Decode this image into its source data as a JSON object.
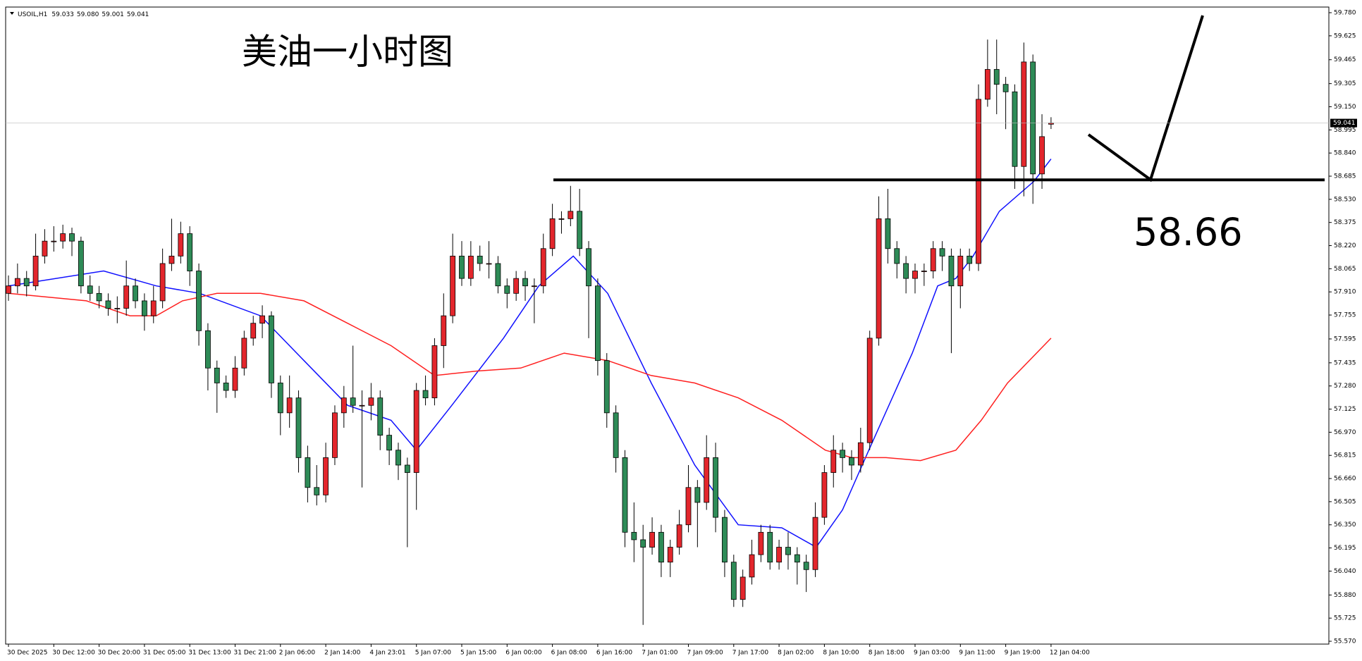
{
  "chart_data": {
    "type": "candlestick",
    "symbol": "USOIL,H1",
    "header_values": [
      "59.033",
      "59.080",
      "59.001",
      "59.041"
    ],
    "title": "美油一小时图",
    "level": 58.66,
    "last_price": 59.041,
    "up_color": "#e3262c",
    "down_color": "#2e8b57",
    "grid": false,
    "ylim": [
      55.57,
      59.78
    ],
    "yticks": [
      {
        "value": 59.78,
        "label": "59.780"
      },
      59.625,
      59.465,
      59.305,
      {
        "value": 59.15,
        "label": "59.150"
      },
      58.995,
      {
        "value": 58.84,
        "label": "58.840"
      },
      58.685,
      {
        "value": 58.53,
        "label": "58.530"
      },
      58.375,
      {
        "value": 58.22,
        "label": "58.220"
      },
      58.065,
      {
        "value": 57.91,
        "label": "57.910"
      },
      57.755,
      57.595,
      57.435,
      {
        "value": 57.28,
        "label": "57.280"
      },
      57.125,
      {
        "value": 56.97,
        "label": "56.970"
      },
      56.815,
      {
        "value": 56.66,
        "label": "56.660"
      },
      56.505,
      {
        "value": 56.35,
        "label": "56.350"
      },
      56.195,
      {
        "value": 56.04,
        "label": "56.040"
      },
      {
        "value": 55.88,
        "label": "55.880"
      },
      55.725,
      {
        "value": 55.57,
        "label": "55.570"
      }
    ],
    "categories": [
      "30 Dec 2025",
      null,
      null,
      null,
      null,
      "30 Dec 12:00",
      null,
      null,
      null,
      null,
      "30 Dec 20:00",
      null,
      null,
      null,
      null,
      "31 Dec 05:00",
      null,
      null,
      null,
      null,
      "31 Dec 13:00",
      null,
      null,
      null,
      null,
      "31 Dec 21:00",
      null,
      null,
      null,
      null,
      "2 Jan 06:00",
      null,
      null,
      null,
      null,
      "2 Jan 14:00",
      null,
      null,
      null,
      null,
      "4 Jan 23:01",
      null,
      null,
      null,
      null,
      "5 Jan 07:00",
      null,
      null,
      null,
      null,
      "5 Jan 15:00",
      null,
      null,
      null,
      null,
      "6 Jan 00:00",
      null,
      null,
      null,
      null,
      "6 Jan 08:00",
      null,
      null,
      null,
      null,
      "6 Jan 16:00",
      null,
      null,
      null,
      null,
      "7 Jan 01:00",
      null,
      null,
      null,
      null,
      "7 Jan 09:00",
      null,
      null,
      null,
      null,
      "7 Jan 17:00",
      null,
      null,
      null,
      null,
      "8 Jan 02:00",
      null,
      null,
      null,
      null,
      "8 Jan 10:00",
      null,
      null,
      null,
      null,
      "8 Jan 18:00",
      null,
      null,
      null,
      null,
      "9 Jan 03:00",
      null,
      null,
      null,
      null,
      "9 Jan 11:00",
      null,
      null,
      null,
      null,
      "9 Jan 19:00",
      null,
      null,
      null,
      null,
      "12 Jan 04:00"
    ],
    "ohlc": [
      [
        57.9,
        58.02,
        57.85,
        57.95
      ],
      [
        57.95,
        58.1,
        57.9,
        58.0
      ],
      [
        58.0,
        58.05,
        57.88,
        57.95
      ],
      [
        57.95,
        58.3,
        57.92,
        58.15
      ],
      [
        58.15,
        58.33,
        58.1,
        58.25
      ],
      [
        58.25,
        58.35,
        58.18,
        58.25
      ],
      [
        58.25,
        58.36,
        58.2,
        58.3
      ],
      [
        58.3,
        58.34,
        58.15,
        58.25
      ],
      [
        58.25,
        58.28,
        57.9,
        57.95
      ],
      [
        57.95,
        58.02,
        57.85,
        57.9
      ],
      [
        57.9,
        57.95,
        57.8,
        57.85
      ],
      [
        57.85,
        57.9,
        57.75,
        57.8
      ],
      [
        57.8,
        57.88,
        57.7,
        57.8
      ],
      [
        57.8,
        58.12,
        57.75,
        57.95
      ],
      [
        57.95,
        58.0,
        57.8,
        57.85
      ],
      [
        57.85,
        57.9,
        57.65,
        57.75
      ],
      [
        57.75,
        57.95,
        57.7,
        57.85
      ],
      [
        57.85,
        58.2,
        57.8,
        58.1
      ],
      [
        58.1,
        58.4,
        58.05,
        58.15
      ],
      [
        58.15,
        58.38,
        58.1,
        58.3
      ],
      [
        58.3,
        58.35,
        57.95,
        58.05
      ],
      [
        58.05,
        58.1,
        57.55,
        57.65
      ],
      [
        57.65,
        57.7,
        57.25,
        57.4
      ],
      [
        57.4,
        57.45,
        57.1,
        57.3
      ],
      [
        57.3,
        57.35,
        57.2,
        57.25
      ],
      [
        57.25,
        57.48,
        57.2,
        57.4
      ],
      [
        57.4,
        57.65,
        57.35,
        57.6
      ],
      [
        57.6,
        57.75,
        57.55,
        57.7
      ],
      [
        57.7,
        57.82,
        57.6,
        57.75
      ],
      [
        57.75,
        57.78,
        57.2,
        57.3
      ],
      [
        57.3,
        57.35,
        56.95,
        57.1
      ],
      [
        57.1,
        57.35,
        57.0,
        57.2
      ],
      [
        57.2,
        57.25,
        56.7,
        56.8
      ],
      [
        56.8,
        56.88,
        56.5,
        56.6
      ],
      [
        56.6,
        56.75,
        56.48,
        56.55
      ],
      [
        56.55,
        56.9,
        56.5,
        56.8
      ],
      [
        56.8,
        57.15,
        56.75,
        57.1
      ],
      [
        57.1,
        57.28,
        57.0,
        57.2
      ],
      [
        57.2,
        57.55,
        57.1,
        57.15
      ],
      [
        57.15,
        57.25,
        56.6,
        57.15
      ],
      [
        57.15,
        57.3,
        57.05,
        57.2
      ],
      [
        57.2,
        57.25,
        56.85,
        56.95
      ],
      [
        56.95,
        57.0,
        56.75,
        56.85
      ],
      [
        56.85,
        56.9,
        56.65,
        56.75
      ],
      [
        56.75,
        56.8,
        56.2,
        56.7
      ],
      [
        56.7,
        57.3,
        56.45,
        57.25
      ],
      [
        57.25,
        57.35,
        57.15,
        57.2
      ],
      [
        57.2,
        57.6,
        57.15,
        57.55
      ],
      [
        57.55,
        57.9,
        57.4,
        57.75
      ],
      [
        57.75,
        58.3,
        57.7,
        58.15
      ],
      [
        58.15,
        58.25,
        57.95,
        58.0
      ],
      [
        58.0,
        58.25,
        57.95,
        58.15
      ],
      [
        58.15,
        58.22,
        58.05,
        58.1
      ],
      [
        58.1,
        58.25,
        58.0,
        58.1
      ],
      [
        58.1,
        58.15,
        57.9,
        57.95
      ],
      [
        57.95,
        58.0,
        57.8,
        57.9
      ],
      [
        57.9,
        58.05,
        57.85,
        58.0
      ],
      [
        58.0,
        58.05,
        57.85,
        57.95
      ],
      [
        57.95,
        58.0,
        57.7,
        57.95
      ],
      [
        57.95,
        58.3,
        57.9,
        58.2
      ],
      [
        58.2,
        58.5,
        58.15,
        58.4
      ],
      [
        58.4,
        58.45,
        58.3,
        58.4
      ],
      [
        58.4,
        58.62,
        58.35,
        58.45
      ],
      [
        58.45,
        58.6,
        58.15,
        58.2
      ],
      [
        58.2,
        58.25,
        57.6,
        57.95
      ],
      [
        57.95,
        58.0,
        57.35,
        57.45
      ],
      [
        57.45,
        57.5,
        57.0,
        57.1
      ],
      [
        57.1,
        57.15,
        56.7,
        56.8
      ],
      [
        56.8,
        56.85,
        56.2,
        56.3
      ],
      [
        56.3,
        56.5,
        56.1,
        56.25
      ],
      [
        56.25,
        56.35,
        55.68,
        56.2
      ],
      [
        56.2,
        56.4,
        56.15,
        56.3
      ],
      [
        56.3,
        56.35,
        56.0,
        56.1
      ],
      [
        56.1,
        56.25,
        56.0,
        56.2
      ],
      [
        56.2,
        56.45,
        56.15,
        56.35
      ],
      [
        56.35,
        56.75,
        56.3,
        56.6
      ],
      [
        56.6,
        56.65,
        56.2,
        56.5
      ],
      [
        56.5,
        56.95,
        56.45,
        56.8
      ],
      [
        56.8,
        56.9,
        56.3,
        56.4
      ],
      [
        56.4,
        56.45,
        56.0,
        56.1
      ],
      [
        56.1,
        56.15,
        55.8,
        55.85
      ],
      [
        55.85,
        56.05,
        55.8,
        56.0
      ],
      [
        56.0,
        56.25,
        55.95,
        56.15
      ],
      [
        56.15,
        56.35,
        56.1,
        56.3
      ],
      [
        56.3,
        56.35,
        56.05,
        56.1
      ],
      [
        56.1,
        56.25,
        56.05,
        56.2
      ],
      [
        56.2,
        56.3,
        56.05,
        56.15
      ],
      [
        56.15,
        56.2,
        55.95,
        56.1
      ],
      [
        56.1,
        56.15,
        55.9,
        56.05
      ],
      [
        56.05,
        56.5,
        56.0,
        56.4
      ],
      [
        56.4,
        56.75,
        56.35,
        56.7
      ],
      [
        56.7,
        56.95,
        56.6,
        56.85
      ],
      [
        56.85,
        56.9,
        56.7,
        56.8
      ],
      [
        56.8,
        56.85,
        56.65,
        56.75
      ],
      [
        56.75,
        57.0,
        56.7,
        56.9
      ],
      [
        56.9,
        57.65,
        56.85,
        57.6
      ],
      [
        57.6,
        58.55,
        57.55,
        58.4
      ],
      [
        58.4,
        58.6,
        58.1,
        58.2
      ],
      [
        58.2,
        58.25,
        58.0,
        58.1
      ],
      [
        58.1,
        58.15,
        57.9,
        58.0
      ],
      [
        58.0,
        58.1,
        57.9,
        58.05
      ],
      [
        58.05,
        58.1,
        57.95,
        58.05
      ],
      [
        58.05,
        58.25,
        58.0,
        58.2
      ],
      [
        58.2,
        58.25,
        58.05,
        58.15
      ],
      [
        58.15,
        58.2,
        57.5,
        57.95
      ],
      [
        57.95,
        58.2,
        57.8,
        58.15
      ],
      [
        58.15,
        58.2,
        58.05,
        58.1
      ],
      [
        58.1,
        59.3,
        58.05,
        59.2
      ],
      [
        59.2,
        59.6,
        59.15,
        59.4
      ],
      [
        59.4,
        59.6,
        59.1,
        59.3
      ],
      [
        59.3,
        59.35,
        59.0,
        59.25
      ],
      [
        59.25,
        59.3,
        58.6,
        58.75
      ],
      [
        58.75,
        59.58,
        58.55,
        59.45
      ],
      [
        59.45,
        59.5,
        58.5,
        58.7
      ],
      [
        58.7,
        59.1,
        58.6,
        58.95
      ],
      [
        59.033,
        59.08,
        59.001,
        59.041
      ]
    ],
    "series": [
      {
        "color": "#1010ff",
        "x": [
          0,
          10.5,
          16.3,
          21.1,
          27.8,
          32.6,
          37.4,
          42.2,
          45.0,
          48.9,
          54.6,
          58.5,
          62.3,
          66.1,
          70.9,
          75.7,
          80.5,
          85.3,
          89.1,
          92.0,
          94.9,
          99.7,
          102.5,
          104.5,
          106.4,
          109.3,
          113.1,
          115
        ],
        "values": [
          57.95,
          58.05,
          57.95,
          57.9,
          57.75,
          57.45,
          57.15,
          57.05,
          56.85,
          57.15,
          57.6,
          57.95,
          58.15,
          57.9,
          57.3,
          56.75,
          56.35,
          56.33,
          56.2,
          56.45,
          56.85,
          57.5,
          57.95,
          58.0,
          58.15,
          58.45,
          58.65,
          58.8
        ]
      },
      {
        "color": "#ff2020",
        "x": [
          0,
          8.6,
          13.4,
          16.3,
          19.2,
          23.0,
          27.8,
          32.6,
          37.4,
          42.2,
          47.0,
          51.7,
          56.5,
          61.3,
          66.1,
          70.9,
          75.7,
          80.5,
          85.3,
          90.1,
          93.0,
          96.8,
          100.6,
          104.5,
          107.3,
          110.2,
          115
        ],
        "values": [
          57.9,
          57.85,
          57.75,
          57.75,
          57.85,
          57.9,
          57.9,
          57.85,
          57.7,
          57.55,
          57.35,
          57.38,
          57.4,
          57.5,
          57.45,
          57.35,
          57.3,
          57.2,
          57.05,
          56.85,
          56.8,
          56.8,
          56.78,
          56.85,
          57.05,
          57.3,
          57.6
        ]
      }
    ]
  }
}
